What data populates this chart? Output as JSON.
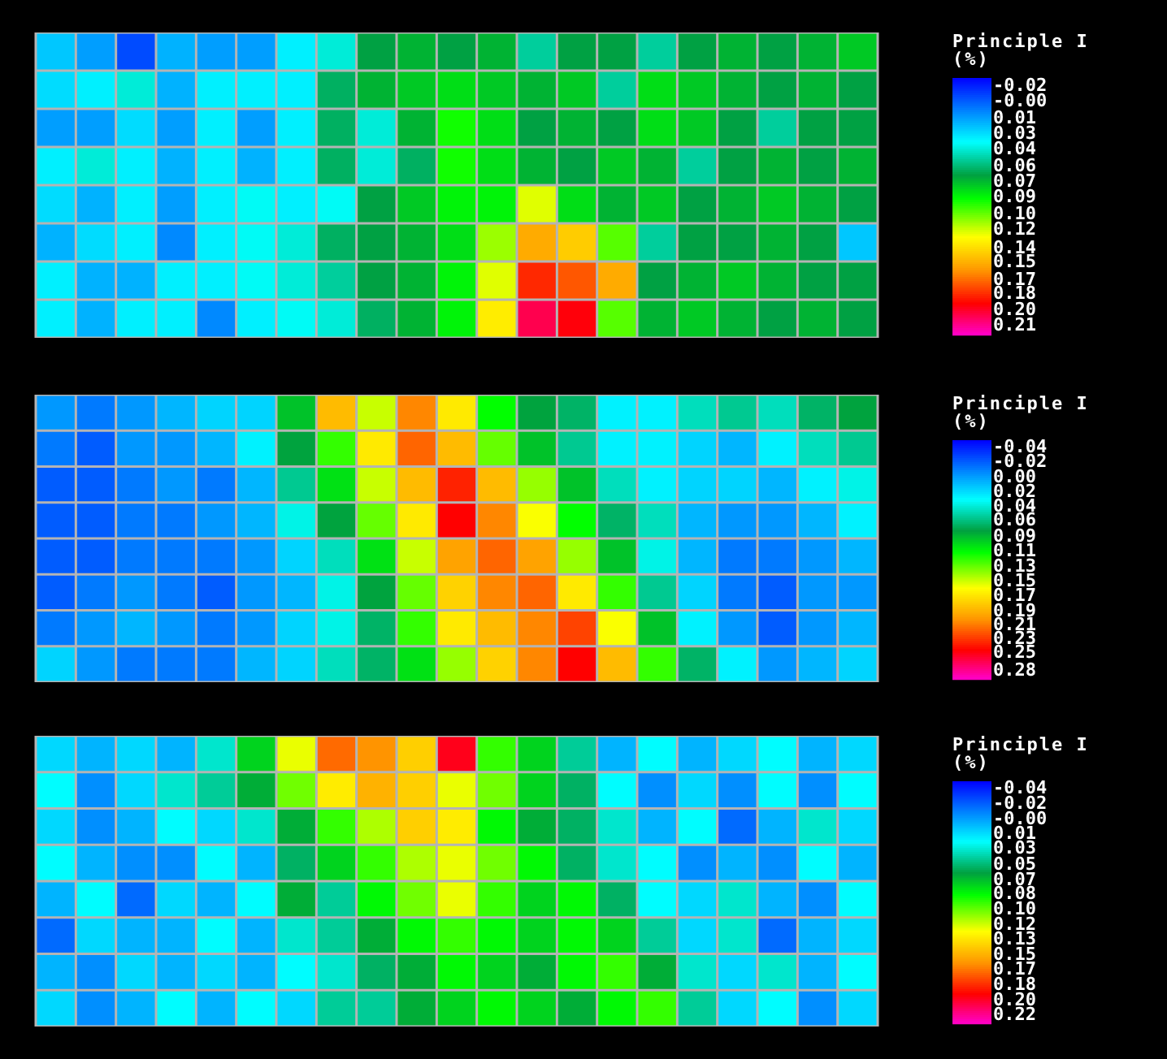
{
  "chart_data": [
    {
      "type": "heatmap",
      "clabel": "Principle I (%)",
      "tick_labels": false,
      "grid": true,
      "categories": [
        null,
        null,
        null,
        null,
        null,
        null,
        null,
        null,
        null,
        null,
        null,
        null,
        null,
        null,
        null,
        null,
        null,
        null,
        null,
        null,
        null
      ],
      "y_categories": [
        null,
        null,
        null,
        null,
        null,
        null,
        null,
        null
      ],
      "clim": [
        -0.028,
        0.218
      ],
      "cticks": [
        {
          "value": -0.02,
          "label": "-0.02"
        },
        {
          "value": -0.005,
          "label": "-0.00"
        },
        {
          "value": 0.011,
          "label": "0.01"
        },
        {
          "value": 0.026,
          "label": "0.03"
        },
        {
          "value": 0.041,
          "label": "0.04"
        },
        {
          "value": 0.057,
          "label": "0.06"
        },
        {
          "value": 0.072,
          "label": "0.07"
        },
        {
          "value": 0.087,
          "label": "0.09"
        },
        {
          "value": 0.103,
          "label": "0.10"
        },
        {
          "value": 0.118,
          "label": "0.12"
        },
        {
          "value": 0.136,
          "label": "0.14"
        },
        {
          "value": 0.149,
          "label": "0.15"
        },
        {
          "value": 0.166,
          "label": "0.17"
        },
        {
          "value": 0.179,
          "label": "0.18"
        },
        {
          "value": 0.195,
          "label": "0.20"
        },
        {
          "value": 0.21,
          "label": "0.21"
        }
      ],
      "cells": [
        [
          0.02,
          0.01,
          -0.01,
          0.015,
          0.01,
          0.01,
          0.03,
          0.04,
          0.065,
          0.07,
          0.065,
          0.07,
          0.05,
          0.065,
          0.065,
          0.05,
          0.065,
          0.07,
          0.065,
          0.07,
          0.075
        ],
        [
          0.025,
          0.03,
          0.04,
          0.015,
          0.03,
          0.03,
          0.03,
          0.06,
          0.07,
          0.075,
          0.08,
          0.075,
          0.07,
          0.075,
          0.05,
          0.08,
          0.075,
          0.07,
          0.065,
          0.07,
          0.065
        ],
        [
          0.01,
          0.01,
          0.025,
          0.01,
          0.03,
          0.01,
          0.03,
          0.06,
          0.04,
          0.07,
          0.09,
          0.08,
          0.065,
          0.07,
          0.065,
          0.08,
          0.075,
          0.065,
          0.05,
          0.065,
          0.065
        ],
        [
          0.03,
          0.04,
          0.03,
          0.015,
          0.03,
          0.015,
          0.03,
          0.06,
          0.04,
          0.06,
          0.09,
          0.08,
          0.07,
          0.065,
          0.075,
          0.07,
          0.05,
          0.065,
          0.07,
          0.065,
          0.07
        ],
        [
          0.025,
          0.015,
          0.03,
          0.01,
          0.03,
          0.035,
          0.03,
          0.035,
          0.065,
          0.075,
          0.085,
          0.085,
          0.12,
          0.08,
          0.07,
          0.075,
          0.065,
          0.07,
          0.075,
          0.07,
          0.065
        ],
        [
          0.015,
          0.025,
          0.03,
          0.005,
          0.03,
          0.035,
          0.04,
          0.06,
          0.065,
          0.07,
          0.08,
          0.11,
          0.15,
          0.14,
          0.1,
          0.05,
          0.065,
          0.065,
          0.07,
          0.065,
          0.02
        ],
        [
          0.03,
          0.015,
          0.015,
          0.03,
          0.03,
          0.035,
          0.04,
          0.05,
          0.065,
          0.07,
          0.085,
          0.12,
          0.18,
          0.17,
          0.15,
          0.065,
          0.07,
          0.075,
          0.07,
          0.065,
          0.065
        ],
        [
          0.03,
          0.015,
          0.03,
          0.03,
          0.005,
          0.03,
          0.035,
          0.04,
          0.06,
          0.07,
          0.085,
          0.13,
          0.2,
          0.19,
          0.1,
          0.07,
          0.075,
          0.07,
          0.065,
          0.07,
          0.065
        ]
      ]
    },
    {
      "type": "heatmap",
      "clabel": "Principle I (%)",
      "tick_labels": false,
      "grid": true,
      "categories": [
        null,
        null,
        null,
        null,
        null,
        null,
        null,
        null,
        null,
        null,
        null,
        null,
        null,
        null,
        null,
        null,
        null,
        null,
        null,
        null,
        null
      ],
      "y_categories": [
        null,
        null,
        null,
        null,
        null,
        null,
        null,
        null
      ],
      "clim": [
        -0.051,
        0.291
      ],
      "cticks": [
        {
          "value": -0.04,
          "label": "-0.04"
        },
        {
          "value": -0.019,
          "label": "-0.02"
        },
        {
          "value": 0.003,
          "label": "0.00"
        },
        {
          "value": 0.024,
          "label": "0.02"
        },
        {
          "value": 0.045,
          "label": "0.04"
        },
        {
          "value": 0.064,
          "label": "0.06"
        },
        {
          "value": 0.088,
          "label": "0.09"
        },
        {
          "value": 0.109,
          "label": "0.11"
        },
        {
          "value": 0.131,
          "label": "0.13"
        },
        {
          "value": 0.152,
          "label": "0.15"
        },
        {
          "value": 0.173,
          "label": "0.17"
        },
        {
          "value": 0.195,
          "label": "0.19"
        },
        {
          "value": 0.214,
          "label": "0.21"
        },
        {
          "value": 0.234,
          "label": "0.23"
        },
        {
          "value": 0.254,
          "label": "0.25"
        },
        {
          "value": 0.28,
          "label": "0.28"
        }
      ],
      "cells": [
        [
          0.0,
          -0.01,
          0.0,
          0.01,
          0.02,
          0.02,
          0.09,
          0.19,
          0.15,
          0.21,
          0.17,
          0.11,
          0.08,
          0.07,
          0.03,
          0.03,
          0.05,
          0.06,
          0.05,
          0.07,
          0.08
        ],
        [
          -0.01,
          -0.02,
          0.0,
          0.0,
          0.01,
          0.03,
          0.08,
          0.12,
          0.17,
          0.22,
          0.19,
          0.13,
          0.09,
          0.06,
          0.03,
          0.03,
          0.02,
          0.01,
          0.03,
          0.05,
          0.06
        ],
        [
          -0.02,
          -0.02,
          -0.01,
          0.0,
          -0.01,
          0.01,
          0.06,
          0.1,
          0.15,
          0.19,
          0.24,
          0.19,
          0.14,
          0.09,
          0.05,
          0.03,
          0.02,
          0.02,
          0.01,
          0.03,
          0.04
        ],
        [
          -0.02,
          -0.02,
          -0.01,
          -0.01,
          0.0,
          0.01,
          0.04,
          0.08,
          0.13,
          0.17,
          0.25,
          0.21,
          0.16,
          0.11,
          0.07,
          0.05,
          0.01,
          0.0,
          0.0,
          0.01,
          0.03
        ],
        [
          -0.02,
          -0.02,
          -0.01,
          -0.01,
          -0.01,
          0.0,
          0.02,
          0.05,
          0.1,
          0.15,
          0.2,
          0.22,
          0.2,
          0.14,
          0.09,
          0.04,
          0.01,
          -0.01,
          -0.01,
          0.0,
          0.01
        ],
        [
          -0.02,
          -0.01,
          0.0,
          -0.01,
          -0.02,
          0.0,
          0.01,
          0.04,
          0.08,
          0.13,
          0.18,
          0.21,
          0.22,
          0.17,
          0.12,
          0.06,
          0.02,
          -0.01,
          -0.02,
          0.0,
          0.0
        ],
        [
          -0.01,
          0.0,
          0.01,
          0.0,
          -0.01,
          0.0,
          0.02,
          0.04,
          0.07,
          0.12,
          0.17,
          0.19,
          0.21,
          0.23,
          0.16,
          0.09,
          0.03,
          0.0,
          -0.02,
          0.0,
          0.01
        ],
        [
          0.02,
          0.0,
          -0.01,
          -0.01,
          -0.01,
          0.01,
          0.02,
          0.05,
          0.07,
          0.1,
          0.14,
          0.18,
          0.21,
          0.25,
          0.19,
          0.12,
          0.07,
          0.03,
          0.0,
          0.01,
          0.02
        ]
      ]
    },
    {
      "type": "heatmap",
      "clabel": "Principle I (%)",
      "tick_labels": false,
      "grid": true,
      "categories": [
        null,
        null,
        null,
        null,
        null,
        null,
        null,
        null,
        null,
        null,
        null,
        null,
        null,
        null,
        null,
        null,
        null,
        null,
        null,
        null,
        null
      ],
      "y_categories": [
        null,
        null,
        null,
        null,
        null,
        null,
        null,
        null
      ],
      "clim": [
        -0.049,
        0.229
      ],
      "cticks": [
        {
          "value": -0.04,
          "label": "-0.04"
        },
        {
          "value": -0.023,
          "label": "-0.02"
        },
        {
          "value": -0.005,
          "label": "-0.00"
        },
        {
          "value": 0.012,
          "label": "0.01"
        },
        {
          "value": 0.029,
          "label": "0.03"
        },
        {
          "value": 0.047,
          "label": "0.05"
        },
        {
          "value": 0.065,
          "label": "0.07"
        },
        {
          "value": 0.081,
          "label": "0.08"
        },
        {
          "value": 0.099,
          "label": "0.10"
        },
        {
          "value": 0.116,
          "label": "0.12"
        },
        {
          "value": 0.133,
          "label": "0.13"
        },
        {
          "value": 0.151,
          "label": "0.15"
        },
        {
          "value": 0.168,
          "label": "0.17"
        },
        {
          "value": 0.185,
          "label": "0.18"
        },
        {
          "value": 0.203,
          "label": "0.20"
        },
        {
          "value": 0.22,
          "label": "0.22"
        }
      ],
      "cells": [
        [
          0.01,
          0.0,
          0.01,
          0.0,
          0.03,
          0.07,
          0.12,
          0.17,
          0.16,
          0.14,
          0.2,
          0.09,
          0.07,
          0.04,
          0.0,
          0.02,
          0.0,
          0.01,
          0.02,
          0.0,
          0.01
        ],
        [
          0.02,
          -0.01,
          0.01,
          0.03,
          0.04,
          0.06,
          0.1,
          0.13,
          0.15,
          0.14,
          0.12,
          0.1,
          0.07,
          0.05,
          0.02,
          -0.01,
          0.01,
          -0.01,
          0.02,
          -0.01,
          0.02
        ],
        [
          0.01,
          -0.01,
          0.0,
          0.02,
          0.01,
          0.03,
          0.06,
          0.09,
          0.11,
          0.14,
          0.13,
          0.08,
          0.06,
          0.05,
          0.03,
          0.0,
          0.02,
          -0.02,
          0.0,
          0.03,
          0.01
        ],
        [
          0.02,
          0.0,
          -0.01,
          -0.01,
          0.02,
          0.0,
          0.05,
          0.07,
          0.09,
          0.11,
          0.12,
          0.1,
          0.08,
          0.05,
          0.03,
          0.02,
          -0.01,
          0.0,
          -0.01,
          0.02,
          0.0
        ],
        [
          0.0,
          0.02,
          -0.02,
          0.01,
          0.0,
          0.02,
          0.06,
          0.04,
          0.08,
          0.1,
          0.12,
          0.09,
          0.07,
          0.08,
          0.05,
          0.02,
          0.01,
          0.03,
          0.0,
          -0.01,
          0.02
        ],
        [
          -0.02,
          0.01,
          0.0,
          0.0,
          0.02,
          0.0,
          0.03,
          0.04,
          0.06,
          0.08,
          0.09,
          0.08,
          0.07,
          0.08,
          0.07,
          0.04,
          0.01,
          0.03,
          -0.02,
          0.0,
          0.01
        ],
        [
          0.0,
          -0.01,
          0.01,
          0.0,
          0.01,
          0.0,
          0.02,
          0.03,
          0.05,
          0.06,
          0.08,
          0.07,
          0.06,
          0.08,
          0.09,
          0.06,
          0.03,
          0.01,
          0.03,
          0.0,
          0.02
        ],
        [
          0.01,
          -0.01,
          0.0,
          0.02,
          0.0,
          0.02,
          0.01,
          0.04,
          0.04,
          0.06,
          0.07,
          0.08,
          0.07,
          0.06,
          0.08,
          0.09,
          0.04,
          0.01,
          0.02,
          -0.01,
          0.01
        ]
      ]
    }
  ]
}
